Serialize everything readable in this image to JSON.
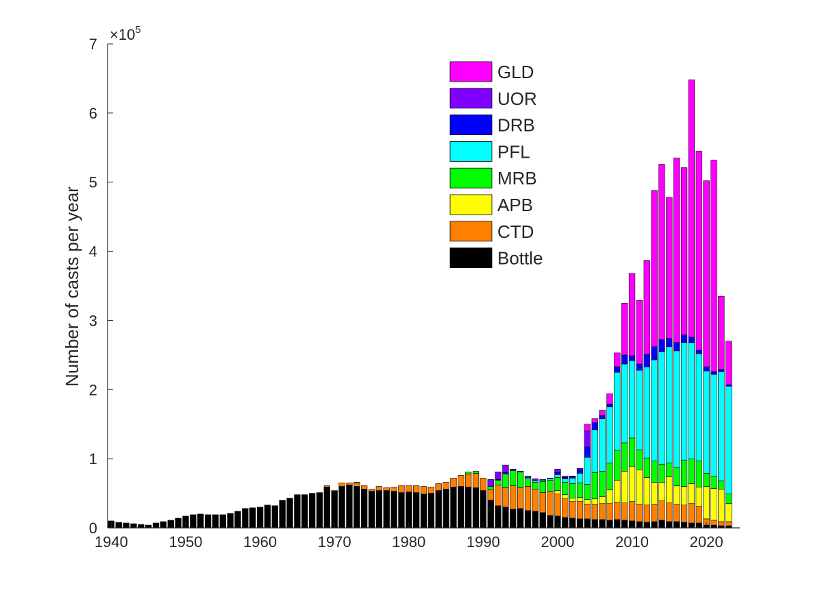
{
  "chart_data": {
    "type": "bar",
    "stacked": true,
    "title": "",
    "xlabel": "",
    "ylabel": "Number of casts per year",
    "y_exponent_label": "×10",
    "y_exponent": "5",
    "xlim": [
      1939.5,
      2024.5
    ],
    "ylim": [
      0,
      7
    ],
    "x_ticks": [
      1940,
      1950,
      1960,
      1970,
      1980,
      1990,
      2000,
      2010,
      2020
    ],
    "y_ticks": [
      0,
      1,
      2,
      3,
      4,
      5,
      6,
      7
    ],
    "grid": false,
    "legend_position": "top-center",
    "legend_order": [
      "GLD",
      "UOR",
      "DRB",
      "PFL",
      "MRB",
      "APB",
      "CTD",
      "Bottle"
    ],
    "x": [
      1940,
      1941,
      1942,
      1943,
      1944,
      1945,
      1946,
      1947,
      1948,
      1949,
      1950,
      1951,
      1952,
      1953,
      1954,
      1955,
      1956,
      1957,
      1958,
      1959,
      1960,
      1961,
      1962,
      1963,
      1964,
      1965,
      1966,
      1967,
      1968,
      1969,
      1970,
      1971,
      1972,
      1973,
      1974,
      1975,
      1976,
      1977,
      1978,
      1979,
      1980,
      1981,
      1982,
      1983,
      1984,
      1985,
      1986,
      1987,
      1988,
      1989,
      1990,
      1991,
      1992,
      1993,
      1994,
      1995,
      1996,
      1997,
      1998,
      1999,
      2000,
      2001,
      2002,
      2003,
      2004,
      2005,
      2006,
      2007,
      2008,
      2009,
      2010,
      2011,
      2012,
      2013,
      2014,
      2015,
      2016,
      2017,
      2018,
      2019,
      2020,
      2021,
      2022,
      2023
    ],
    "series": [
      {
        "name": "Bottle",
        "color": "#000000",
        "values": [
          0.1,
          0.08,
          0.07,
          0.06,
          0.05,
          0.04,
          0.07,
          0.09,
          0.11,
          0.14,
          0.17,
          0.19,
          0.2,
          0.19,
          0.19,
          0.19,
          0.21,
          0.24,
          0.28,
          0.29,
          0.3,
          0.33,
          0.32,
          0.4,
          0.43,
          0.48,
          0.48,
          0.5,
          0.51,
          0.59,
          0.53,
          0.6,
          0.62,
          0.6,
          0.56,
          0.53,
          0.54,
          0.54,
          0.53,
          0.51,
          0.52,
          0.51,
          0.49,
          0.5,
          0.54,
          0.56,
          0.59,
          0.6,
          0.59,
          0.58,
          0.54,
          0.4,
          0.32,
          0.3,
          0.27,
          0.28,
          0.25,
          0.24,
          0.22,
          0.18,
          0.17,
          0.15,
          0.14,
          0.13,
          0.13,
          0.12,
          0.12,
          0.11,
          0.12,
          0.11,
          0.1,
          0.09,
          0.08,
          0.09,
          0.11,
          0.09,
          0.09,
          0.08,
          0.07,
          0.07,
          0.04,
          0.04,
          0.03,
          0.03
        ]
      },
      {
        "name": "CTD",
        "color": "#FF7F00",
        "values": [
          0,
          0,
          0,
          0,
          0,
          0,
          0,
          0,
          0,
          0,
          0,
          0,
          0,
          0,
          0,
          0,
          0,
          0,
          0,
          0,
          0,
          0,
          0,
          0,
          0,
          0,
          0,
          0,
          0,
          0.02,
          0.01,
          0.05,
          0.03,
          0.05,
          0.05,
          0.03,
          0.06,
          0.04,
          0.06,
          0.1,
          0.09,
          0.1,
          0.11,
          0.09,
          0.1,
          0.1,
          0.13,
          0.16,
          0.19,
          0.21,
          0.18,
          0.15,
          0.3,
          0.28,
          0.34,
          0.3,
          0.35,
          0.32,
          0.29,
          0.35,
          0.32,
          0.27,
          0.24,
          0.25,
          0.21,
          0.22,
          0.23,
          0.24,
          0.25,
          0.25,
          0.28,
          0.25,
          0.25,
          0.25,
          0.28,
          0.27,
          0.25,
          0.25,
          0.28,
          0.24,
          0.09,
          0.07,
          0.06,
          0.06
        ]
      },
      {
        "name": "APB",
        "color": "#FFFF00",
        "values": [
          0,
          0,
          0,
          0,
          0,
          0,
          0,
          0,
          0,
          0,
          0,
          0,
          0,
          0,
          0,
          0,
          0,
          0,
          0,
          0,
          0,
          0,
          0,
          0,
          0,
          0,
          0,
          0,
          0,
          0,
          0,
          0,
          0,
          0,
          0,
          0,
          0,
          0,
          0,
          0,
          0,
          0,
          0,
          0,
          0,
          0,
          0,
          0,
          0,
          0,
          0,
          0,
          0,
          0,
          0,
          0,
          0,
          0,
          0,
          0,
          0.05,
          0.06,
          0.05,
          0.06,
          0.07,
          0.08,
          0.1,
          0.2,
          0.32,
          0.46,
          0.51,
          0.5,
          0.4,
          0.32,
          0.27,
          0.38,
          0.27,
          0.27,
          0.29,
          0.28,
          0.47,
          0.46,
          0.47,
          0.26
        ]
      },
      {
        "name": "MRB",
        "color": "#00FF00",
        "values": [
          0,
          0,
          0,
          0,
          0,
          0,
          0,
          0,
          0,
          0,
          0,
          0,
          0,
          0,
          0,
          0,
          0,
          0,
          0,
          0,
          0,
          0,
          0,
          0,
          0,
          0,
          0,
          0,
          0,
          0,
          0,
          0,
          0,
          0.01,
          0,
          0,
          0,
          0,
          0,
          0,
          0,
          0,
          0,
          0,
          0,
          0,
          0,
          0,
          0.03,
          0.03,
          0,
          0.05,
          0.07,
          0.2,
          0.22,
          0.23,
          0.11,
          0.1,
          0.16,
          0.16,
          0.19,
          0.18,
          0.21,
          0.21,
          0.22,
          0.38,
          0.37,
          0.39,
          0.43,
          0.41,
          0.41,
          0.29,
          0.28,
          0.31,
          0.26,
          0.2,
          0.27,
          0.38,
          0.36,
          0.38,
          0.19,
          0.18,
          0.12,
          0.14
        ]
      },
      {
        "name": "PFL",
        "color": "#00FFFF",
        "values": [
          0,
          0,
          0,
          0,
          0,
          0,
          0,
          0,
          0,
          0,
          0,
          0,
          0,
          0,
          0,
          0,
          0,
          0,
          0,
          0,
          0,
          0,
          0,
          0,
          0,
          0,
          0,
          0,
          0,
          0,
          0,
          0,
          0,
          0,
          0,
          0,
          0,
          0,
          0,
          0,
          0,
          0,
          0,
          0,
          0,
          0,
          0,
          0,
          0,
          0,
          0,
          0,
          0,
          0,
          0,
          0,
          0.02,
          0.02,
          0.02,
          0.02,
          0.04,
          0.05,
          0.08,
          0.14,
          0.39,
          0.62,
          0.76,
          0.81,
          1.13,
          1.14,
          1.12,
          1.15,
          1.32,
          1.46,
          1.63,
          1.68,
          1.68,
          1.7,
          1.68,
          1.55,
          1.48,
          1.47,
          1.58,
          1.56
        ]
      },
      {
        "name": "DRB",
        "color": "#0000FF",
        "values": [
          0,
          0,
          0,
          0,
          0,
          0,
          0,
          0,
          0,
          0,
          0,
          0,
          0,
          0,
          0,
          0,
          0,
          0,
          0,
          0,
          0,
          0,
          0,
          0,
          0,
          0,
          0,
          0,
          0,
          0,
          0,
          0,
          0,
          0,
          0,
          0,
          0,
          0,
          0,
          0,
          0,
          0,
          0,
          0,
          0,
          0,
          0,
          0,
          0,
          0,
          0,
          0,
          0.01,
          0.02,
          0.02,
          0.01,
          0,
          0,
          0,
          0,
          0.03,
          0.02,
          0.02,
          0.05,
          0.15,
          0.1,
          0.05,
          0.04,
          0.08,
          0.13,
          0.07,
          0.09,
          0.18,
          0.19,
          0.17,
          0.12,
          0.12,
          0.11,
          0.08,
          0.05,
          0.06,
          0.04,
          0.03,
          0.02
        ]
      },
      {
        "name": "UOR",
        "color": "#7F00FF",
        "values": [
          0,
          0,
          0,
          0,
          0,
          0,
          0,
          0,
          0,
          0,
          0,
          0,
          0,
          0,
          0,
          0,
          0,
          0,
          0,
          0,
          0,
          0,
          0,
          0,
          0,
          0,
          0,
          0,
          0,
          0,
          0,
          0,
          0,
          0,
          0,
          0,
          0,
          0,
          0,
          0,
          0,
          0,
          0,
          0,
          0,
          0,
          0,
          0,
          0,
          0,
          0,
          0.1,
          0.11,
          0.11,
          0,
          0,
          0.02,
          0.03,
          0.01,
          0.01,
          0.05,
          0.02,
          0.01,
          0.02,
          0.23,
          0,
          0,
          0,
          0,
          0,
          0,
          0,
          0,
          0,
          0,
          0,
          0,
          0,
          0,
          0,
          0,
          0,
          0,
          0
        ]
      },
      {
        "name": "GLD",
        "color": "#FF00FF",
        "values": [
          0,
          0,
          0,
          0,
          0,
          0,
          0,
          0,
          0,
          0,
          0,
          0,
          0,
          0,
          0,
          0,
          0,
          0,
          0,
          0,
          0,
          0,
          0,
          0,
          0,
          0,
          0,
          0,
          0,
          0,
          0,
          0,
          0,
          0,
          0,
          0,
          0,
          0,
          0,
          0,
          0,
          0,
          0,
          0,
          0,
          0,
          0,
          0,
          0,
          0,
          0,
          0,
          0,
          0,
          0,
          0,
          0,
          0,
          0,
          0,
          0,
          0,
          0,
          0,
          0.1,
          0.06,
          0.07,
          0.15,
          0.2,
          0.75,
          1.19,
          0.92,
          1.36,
          2.26,
          2.54,
          2.04,
          2.67,
          2.42,
          3.72,
          2.88,
          2.69,
          3.06,
          1.06,
          0.63
        ]
      }
    ]
  }
}
